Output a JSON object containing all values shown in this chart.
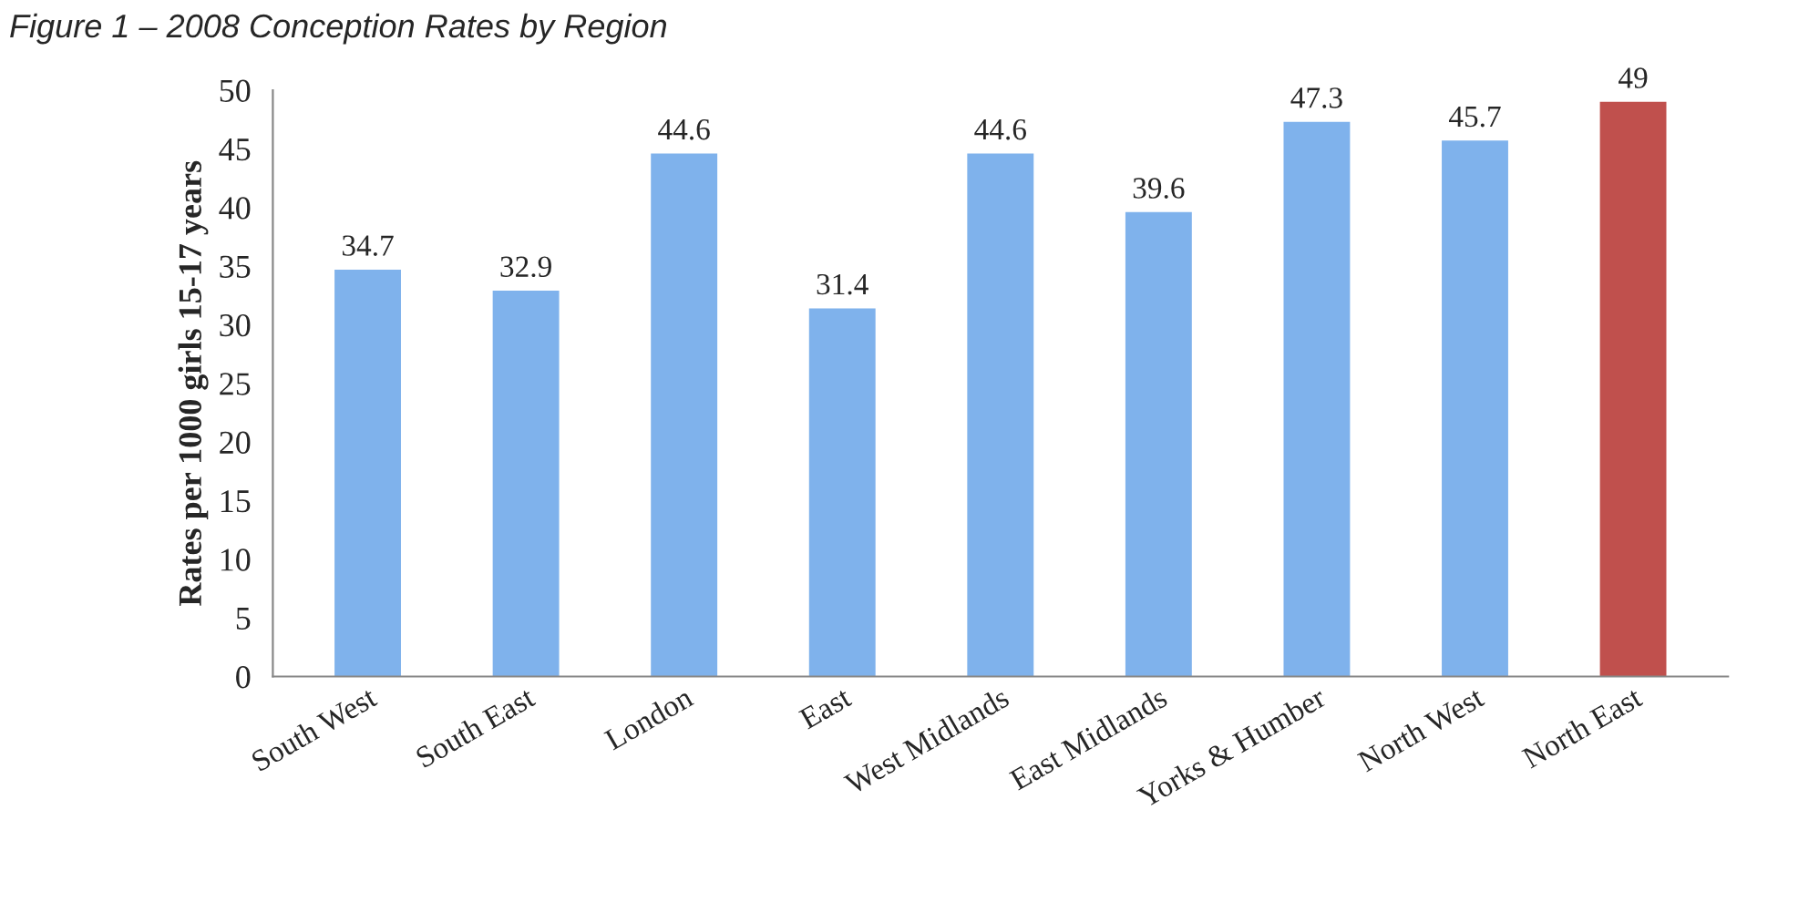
{
  "chart_data": {
    "type": "bar",
    "title": "Figure 1 – 2008 Conception Rates by Region",
    "ylabel": "Rates per 1000 girls 15-17 years",
    "categories": [
      "South West",
      "South East",
      "London",
      "East",
      "West Midlands",
      "East Midlands",
      "Yorks & Humber",
      "North West",
      "North East"
    ],
    "values": [
      34.7,
      32.9,
      44.6,
      31.4,
      44.6,
      39.6,
      47.3,
      45.7,
      49
    ],
    "colors": [
      "#7fb2ec",
      "#7fb2ec",
      "#7fb2ec",
      "#7fb2ec",
      "#7fb2ec",
      "#7fb2ec",
      "#7fb2ec",
      "#7fb2ec",
      "#c0504d"
    ],
    "ylim": [
      0,
      50
    ],
    "yticks": [
      0,
      5,
      10,
      15,
      20,
      25,
      30,
      35,
      40,
      45,
      50
    ],
    "grid": false,
    "data_labels": true
  }
}
